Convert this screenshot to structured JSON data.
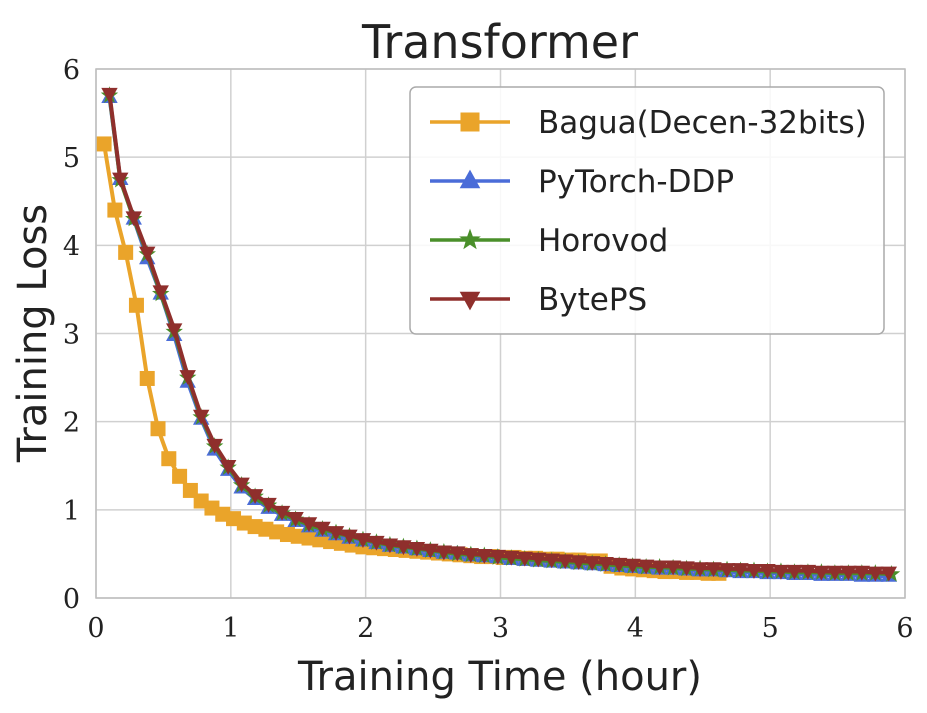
{
  "chart_data": {
    "type": "line",
    "title": "Transformer",
    "xlabel": "Training Time (hour)",
    "ylabel": "Training Loss",
    "xlim": [
      0,
      6
    ],
    "ylim": [
      0,
      6
    ],
    "xticks": [
      "0",
      "1",
      "2",
      "3",
      "4",
      "5",
      "6"
    ],
    "yticks": [
      "0",
      "1",
      "2",
      "3",
      "4",
      "5",
      "6"
    ],
    "grid": true,
    "legend_position": "top-right",
    "series": [
      {
        "name": "Bagua(Decen-32bits)",
        "color": "#eaa42a",
        "marker": "square",
        "x": [
          0.06,
          0.14,
          0.22,
          0.3,
          0.38,
          0.46,
          0.54,
          0.62,
          0.7,
          0.78,
          0.86,
          0.94,
          1.02,
          1.1,
          1.18,
          1.26,
          1.34,
          1.42,
          1.5,
          1.58,
          1.66,
          1.74,
          1.82,
          1.9,
          1.98,
          2.06,
          2.14,
          2.22,
          2.3,
          2.38,
          2.46,
          2.54,
          2.62,
          2.7,
          2.78,
          2.86,
          2.94,
          3.02,
          3.1,
          3.18,
          3.26,
          3.34,
          3.42,
          3.5,
          3.58,
          3.66,
          3.74,
          3.82,
          3.9,
          3.98,
          4.06,
          4.14,
          4.22,
          4.3,
          4.38,
          4.46,
          4.54,
          4.62
        ],
        "values": [
          5.15,
          4.4,
          3.92,
          3.32,
          2.49,
          1.92,
          1.58,
          1.38,
          1.22,
          1.1,
          1.02,
          0.95,
          0.9,
          0.85,
          0.81,
          0.78,
          0.75,
          0.72,
          0.7,
          0.68,
          0.66,
          0.64,
          0.62,
          0.6,
          0.58,
          0.57,
          0.56,
          0.55,
          0.54,
          0.53,
          0.52,
          0.51,
          0.5,
          0.49,
          0.48,
          0.47,
          0.47,
          0.46,
          0.46,
          0.45,
          0.45,
          0.44,
          0.44,
          0.43,
          0.43,
          0.42,
          0.42,
          0.36,
          0.34,
          0.33,
          0.32,
          0.31,
          0.3,
          0.3,
          0.29,
          0.29,
          0.28,
          0.28
        ]
      },
      {
        "name": "PyTorch-DDP",
        "color": "#4a6cd8",
        "marker": "triangle-up",
        "x": [
          0.1,
          0.18,
          0.28,
          0.38,
          0.48,
          0.58,
          0.68,
          0.78,
          0.88,
          0.98,
          1.08,
          1.18,
          1.28,
          1.38,
          1.48,
          1.58,
          1.68,
          1.78,
          1.88,
          1.98,
          2.08,
          2.18,
          2.28,
          2.38,
          2.48,
          2.58,
          2.68,
          2.78,
          2.88,
          2.98,
          3.08,
          3.18,
          3.28,
          3.38,
          3.48,
          3.58,
          3.68,
          3.78,
          3.88,
          3.98,
          4.08,
          4.18,
          4.28,
          4.38,
          4.48,
          4.58,
          4.68,
          4.78,
          4.88,
          4.98,
          5.08,
          5.18,
          5.28,
          5.38,
          5.48,
          5.58,
          5.68,
          5.78,
          5.88
        ],
        "values": [
          5.68,
          4.75,
          4.3,
          3.85,
          3.45,
          2.98,
          2.45,
          2.03,
          1.68,
          1.45,
          1.25,
          1.12,
          1.02,
          0.94,
          0.87,
          0.81,
          0.76,
          0.72,
          0.68,
          0.65,
          0.62,
          0.59,
          0.57,
          0.55,
          0.53,
          0.51,
          0.5,
          0.48,
          0.47,
          0.46,
          0.44,
          0.43,
          0.42,
          0.41,
          0.4,
          0.39,
          0.38,
          0.37,
          0.36,
          0.35,
          0.34,
          0.33,
          0.33,
          0.32,
          0.31,
          0.31,
          0.3,
          0.29,
          0.29,
          0.28,
          0.28,
          0.27,
          0.27,
          0.26,
          0.26,
          0.26,
          0.25,
          0.25,
          0.25
        ]
      },
      {
        "name": "Horovod",
        "color": "#4a8f2a",
        "marker": "star",
        "x": [
          0.1,
          0.18,
          0.28,
          0.38,
          0.48,
          0.58,
          0.68,
          0.78,
          0.88,
          0.98,
          1.08,
          1.18,
          1.28,
          1.38,
          1.48,
          1.58,
          1.68,
          1.78,
          1.88,
          1.98,
          2.08,
          2.18,
          2.28,
          2.38,
          2.48,
          2.58,
          2.68,
          2.78,
          2.88,
          2.98,
          3.08,
          3.18,
          3.28,
          3.38,
          3.48,
          3.58,
          3.68,
          3.78,
          3.88,
          3.98,
          4.08,
          4.18,
          4.28,
          4.38,
          4.48,
          4.58,
          4.68,
          4.78,
          4.88,
          4.98,
          5.08,
          5.18,
          5.28,
          5.38,
          5.48,
          5.58,
          5.68,
          5.78,
          5.9
        ],
        "values": [
          5.7,
          4.74,
          4.3,
          3.9,
          3.45,
          3.02,
          2.5,
          2.05,
          1.72,
          1.48,
          1.28,
          1.15,
          1.05,
          0.96,
          0.89,
          0.83,
          0.78,
          0.74,
          0.7,
          0.66,
          0.63,
          0.6,
          0.58,
          0.56,
          0.54,
          0.52,
          0.5,
          0.49,
          0.48,
          0.46,
          0.45,
          0.44,
          0.43,
          0.42,
          0.41,
          0.4,
          0.39,
          0.38,
          0.37,
          0.36,
          0.35,
          0.35,
          0.34,
          0.33,
          0.33,
          0.32,
          0.32,
          0.31,
          0.31,
          0.3,
          0.3,
          0.29,
          0.29,
          0.29,
          0.28,
          0.28,
          0.28,
          0.28,
          0.27
        ]
      },
      {
        "name": "BytePS",
        "color": "#8f2f2c",
        "marker": "triangle-down",
        "x": [
          0.1,
          0.18,
          0.28,
          0.38,
          0.48,
          0.58,
          0.68,
          0.78,
          0.88,
          0.98,
          1.08,
          1.18,
          1.28,
          1.38,
          1.48,
          1.58,
          1.68,
          1.78,
          1.88,
          1.98,
          2.08,
          2.18,
          2.28,
          2.38,
          2.48,
          2.58,
          2.68,
          2.78,
          2.88,
          2.98,
          3.08,
          3.18,
          3.28,
          3.38,
          3.48,
          3.58,
          3.68,
          3.78,
          3.88,
          3.98,
          4.08,
          4.18,
          4.28,
          4.38,
          4.48,
          4.58,
          4.68,
          4.78,
          4.88,
          4.98,
          5.08,
          5.18,
          5.28,
          5.38,
          5.48,
          5.58,
          5.68,
          5.78,
          5.88
        ],
        "values": [
          5.72,
          4.76,
          4.32,
          3.92,
          3.48,
          3.05,
          2.52,
          2.07,
          1.74,
          1.5,
          1.3,
          1.17,
          1.07,
          0.98,
          0.91,
          0.85,
          0.8,
          0.75,
          0.71,
          0.67,
          0.64,
          0.61,
          0.59,
          0.57,
          0.55,
          0.53,
          0.52,
          0.5,
          0.49,
          0.48,
          0.47,
          0.46,
          0.45,
          0.44,
          0.43,
          0.42,
          0.41,
          0.4,
          0.39,
          0.38,
          0.37,
          0.36,
          0.36,
          0.35,
          0.34,
          0.34,
          0.33,
          0.33,
          0.32,
          0.32,
          0.31,
          0.31,
          0.31,
          0.3,
          0.3,
          0.3,
          0.3,
          0.29,
          0.29
        ]
      }
    ]
  }
}
